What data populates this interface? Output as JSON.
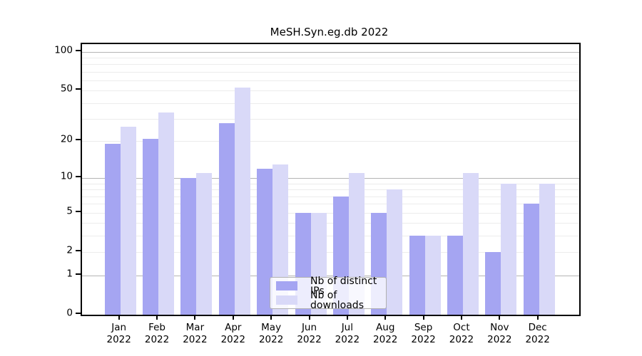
{
  "title": "MeSH.Syn.eg.db 2022",
  "chart_data": {
    "type": "bar",
    "title": "MeSH.Syn.eg.db 2022",
    "categories": [
      "Jan 2022",
      "Feb 2022",
      "Mar 2022",
      "Apr 2022",
      "May 2022",
      "Jun 2022",
      "Jul 2022",
      "Aug 2022",
      "Sep 2022",
      "Oct 2022",
      "Nov 2022",
      "Dec 2022"
    ],
    "series": [
      {
        "name": "Nb of distinct IPs",
        "color": "#a5a5f2",
        "values": [
          19,
          21,
          10,
          28,
          12,
          5,
          7,
          5,
          3,
          3,
          2,
          6
        ]
      },
      {
        "name": "Nb of downloads",
        "color": "#d9d9f8",
        "values": [
          26,
          34,
          11,
          53,
          13,
          5,
          11,
          8,
          3,
          11,
          9,
          9
        ]
      }
    ],
    "xlabel": "",
    "ylabel": "",
    "yscale": "log1p",
    "yticks": [
      0,
      1,
      2,
      5,
      10,
      20,
      50,
      100
    ],
    "minor_gridlines": [
      2,
      3,
      4,
      5,
      6,
      7,
      8,
      9,
      20,
      30,
      40,
      50,
      60,
      70,
      80,
      90
    ],
    "major_gridlines": [
      1,
      10,
      100
    ],
    "ylim": [
      0,
      115
    ],
    "grid": "horizontal",
    "legend_position": "inside-bottom-center"
  },
  "colors": {
    "bar_distinct_ips": "#a5a5f2",
    "bar_downloads": "#d9d9f8",
    "grid_minor": "#ececec",
    "grid_major": "#b4b4b4",
    "axis": "#000000",
    "legend_border": "#b0b0b0"
  }
}
